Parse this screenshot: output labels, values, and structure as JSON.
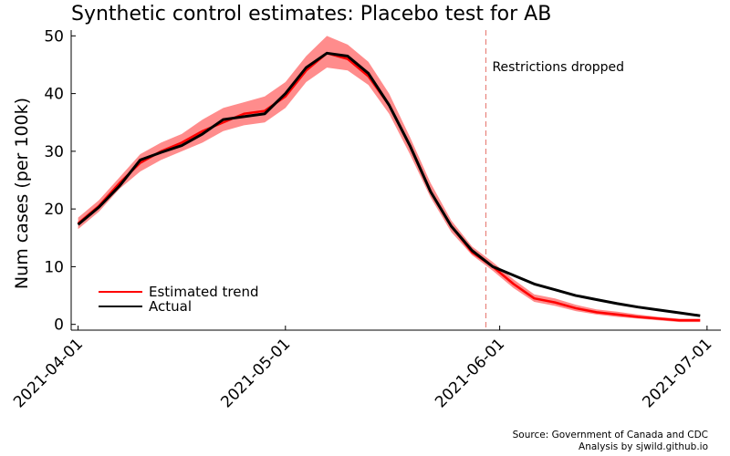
{
  "chart_data": {
    "type": "line",
    "title": "Synthetic control estimates: Placebo test for AB",
    "xlabel": "",
    "ylabel": "Num cases (per 100k)",
    "x_ticks": [
      "2021-04-01",
      "2021-05-01",
      "2021-06-01",
      "2021-07-01"
    ],
    "y_ticks": [
      0,
      10,
      20,
      30,
      40,
      50
    ],
    "xlim": [
      "2021-03-31",
      "2021-07-03"
    ],
    "ylim": [
      -1,
      51
    ],
    "grid": false,
    "legend_position": "bottom-left",
    "vline": {
      "x": "2021-05-30",
      "label": "Restrictions dropped",
      "color": "#e8837b"
    },
    "x": [
      "2021-04-01",
      "2021-04-04",
      "2021-04-07",
      "2021-04-10",
      "2021-04-13",
      "2021-04-16",
      "2021-04-19",
      "2021-04-22",
      "2021-04-25",
      "2021-04-28",
      "2021-05-01",
      "2021-05-04",
      "2021-05-07",
      "2021-05-10",
      "2021-05-13",
      "2021-05-16",
      "2021-05-19",
      "2021-05-22",
      "2021-05-25",
      "2021-05-28",
      "2021-05-31",
      "2021-06-03",
      "2021-06-06",
      "2021-06-09",
      "2021-06-12",
      "2021-06-15",
      "2021-06-18",
      "2021-06-21",
      "2021-06-24",
      "2021-06-27",
      "2021-06-30"
    ],
    "series": [
      {
        "name": "Estimated trend",
        "color": "#ff0000",
        "band_color": "#ff7f7f",
        "values": [
          17.5,
          20.5,
          24.5,
          28.0,
          30.0,
          31.5,
          33.5,
          35.0,
          36.5,
          37.0,
          39.5,
          44.0,
          47.0,
          46.0,
          43.0,
          38.0,
          31.0,
          23.0,
          17.0,
          12.5,
          10.0,
          7.0,
          4.5,
          3.8,
          2.8,
          2.1,
          1.7,
          1.3,
          1.0,
          0.7,
          0.7
        ],
        "lower": [
          16.5,
          19.5,
          23.5,
          26.5,
          28.5,
          30.0,
          31.5,
          33.5,
          34.5,
          35.0,
          37.5,
          42.0,
          44.5,
          44.0,
          41.5,
          36.5,
          29.5,
          22.0,
          16.0,
          12.0,
          9.3,
          6.3,
          3.9,
          3.2,
          2.3,
          1.7,
          1.3,
          1.0,
          0.7,
          0.4,
          0.4
        ],
        "upper": [
          18.5,
          21.5,
          25.5,
          29.5,
          31.5,
          33.0,
          35.5,
          37.5,
          38.5,
          39.5,
          42.0,
          46.5,
          50.0,
          48.5,
          45.5,
          40.0,
          32.5,
          24.5,
          18.0,
          13.5,
          10.8,
          7.8,
          5.2,
          4.5,
          3.4,
          2.6,
          2.2,
          1.7,
          1.3,
          1.0,
          1.0
        ]
      },
      {
        "name": "Actual",
        "color": "#000000",
        "values": [
          17.3,
          20.3,
          24.0,
          28.5,
          29.8,
          31.0,
          33.0,
          35.5,
          36.0,
          36.5,
          40.0,
          44.5,
          47.0,
          46.5,
          43.5,
          38.0,
          31.0,
          23.0,
          17.0,
          12.8,
          10.0,
          8.5,
          7.0,
          6.0,
          5.0,
          4.3,
          3.6,
          3.0,
          2.5,
          2.0,
          1.5
        ]
      }
    ],
    "source_lines": [
      "Source: Government of Canada and CDC",
      "Analysis by sjwild.github.io"
    ]
  }
}
